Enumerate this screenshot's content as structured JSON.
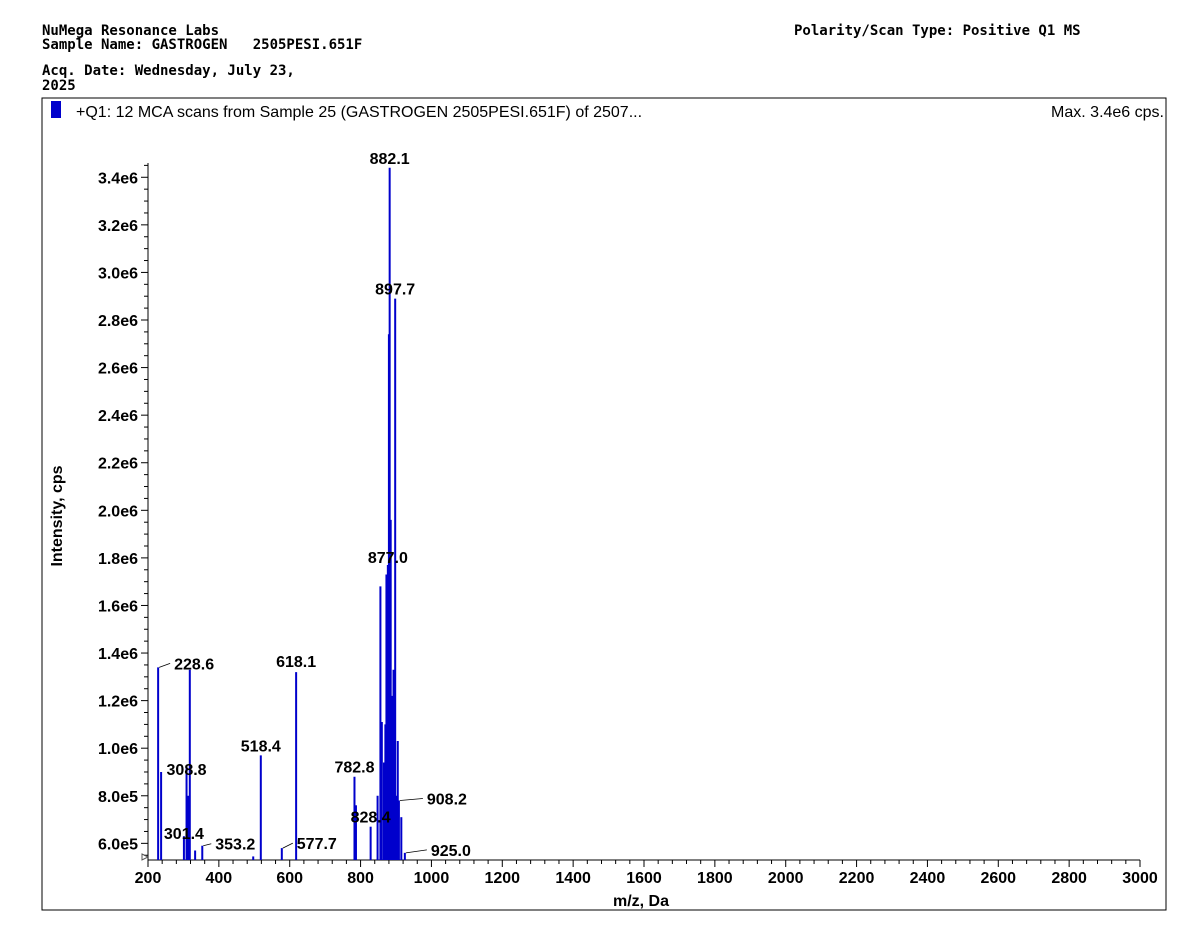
{
  "header": {
    "lab": "NuMega Resonance Labs",
    "sample_name": "Sample Name: GASTROGEN   2505PESI.651F",
    "acq_date_line1": "Acq. Date: Wednesday, July 23,",
    "acq_date_line2": "2025",
    "polarity": "Polarity/Scan Type: Positive Q1 MS"
  },
  "colors": {
    "series": "#0000cc",
    "axis": "#000000",
    "frame": "#000000"
  },
  "chart_data": {
    "type": "bar",
    "title": "+Q1: 12 MCA scans from Sample 25 (GASTROGEN   2505PESI.651F) of 2507...",
    "max_text": "Max. 3.4e6 cps.",
    "xlabel": "m/z, Da",
    "ylabel": "Intensity, cps",
    "xlim": [
      200,
      3000
    ],
    "ylim": [
      530000,
      3460000
    ],
    "x_ticks": [
      200,
      400,
      600,
      800,
      1000,
      1200,
      1400,
      1600,
      1800,
      2000,
      2200,
      2400,
      2600,
      2800,
      3000
    ],
    "y_ticks": [
      {
        "value": 600000,
        "label": "6.0e5"
      },
      {
        "value": 800000,
        "label": "8.0e5"
      },
      {
        "value": 1000000,
        "label": "1.0e6"
      },
      {
        "value": 1200000,
        "label": "1.2e6"
      },
      {
        "value": 1400000,
        "label": "1.4e6"
      },
      {
        "value": 1600000,
        "label": "1.6e6"
      },
      {
        "value": 1800000,
        "label": "1.8e6"
      },
      {
        "value": 2000000,
        "label": "2.0e6"
      },
      {
        "value": 2200000,
        "label": "2.2e6"
      },
      {
        "value": 2400000,
        "label": "2.4e6"
      },
      {
        "value": 2600000,
        "label": "2.6e6"
      },
      {
        "value": 2800000,
        "label": "2.8e6"
      },
      {
        "value": 3000000,
        "label": "3.0e6"
      },
      {
        "value": 3200000,
        "label": "3.2e6"
      },
      {
        "value": 3400000,
        "label": "3.4e6"
      }
    ],
    "peaks": [
      {
        "mz": 228.6,
        "intensity": 1340000
      },
      {
        "mz": 237,
        "intensity": 900000
      },
      {
        "mz": 301.4,
        "intensity": 630000
      },
      {
        "mz": 308.8,
        "intensity": 920000
      },
      {
        "mz": 314,
        "intensity": 800000
      },
      {
        "mz": 318,
        "intensity": 1330000
      },
      {
        "mz": 333,
        "intensity": 570000
      },
      {
        "mz": 353.2,
        "intensity": 590000
      },
      {
        "mz": 497,
        "intensity": 545000
      },
      {
        "mz": 518.4,
        "intensity": 970000
      },
      {
        "mz": 577.7,
        "intensity": 580000
      },
      {
        "mz": 618.1,
        "intensity": 1320000
      },
      {
        "mz": 782.8,
        "intensity": 880000
      },
      {
        "mz": 787,
        "intensity": 760000
      },
      {
        "mz": 828.4,
        "intensity": 670000
      },
      {
        "mz": 848,
        "intensity": 800000
      },
      {
        "mz": 856,
        "intensity": 1680000
      },
      {
        "mz": 860,
        "intensity": 1110000
      },
      {
        "mz": 866,
        "intensity": 940000
      },
      {
        "mz": 870,
        "intensity": 1100000
      },
      {
        "mz": 873,
        "intensity": 1730000
      },
      {
        "mz": 877.0,
        "intensity": 1770000
      },
      {
        "mz": 880,
        "intensity": 2740000
      },
      {
        "mz": 882.1,
        "intensity": 3440000
      },
      {
        "mz": 885,
        "intensity": 1960000
      },
      {
        "mz": 889,
        "intensity": 1220000
      },
      {
        "mz": 893,
        "intensity": 1330000
      },
      {
        "mz": 897.7,
        "intensity": 2890000
      },
      {
        "mz": 901,
        "intensity": 800000
      },
      {
        "mz": 905,
        "intensity": 1030000
      },
      {
        "mz": 908.2,
        "intensity": 780000
      },
      {
        "mz": 915,
        "intensity": 710000
      },
      {
        "mz": 925.0,
        "intensity": 560000
      }
    ],
    "annotations": [
      {
        "text": "882.1",
        "mz": 882.1,
        "intensity": 3440000
      },
      {
        "text": "897.7",
        "mz": 897.7,
        "intensity": 2890000
      },
      {
        "text": "877.0",
        "mz": 877.0,
        "intensity": 1770000
      },
      {
        "text": "228.6",
        "mz": 228.6,
        "intensity": 1340000
      },
      {
        "text": "618.1",
        "mz": 618.1,
        "intensity": 1320000
      },
      {
        "text": "518.4",
        "mz": 518.4,
        "intensity": 970000
      },
      {
        "text": "308.8",
        "mz": 308.8,
        "intensity": 920000
      },
      {
        "text": "782.8",
        "mz": 782.8,
        "intensity": 880000
      },
      {
        "text": "908.2",
        "mz": 908.2,
        "intensity": 780000
      },
      {
        "text": "828.4",
        "mz": 828.4,
        "intensity": 670000
      },
      {
        "text": "301.4",
        "mz": 301.4,
        "intensity": 630000
      },
      {
        "text": "353.2",
        "mz": 353.2,
        "intensity": 590000
      },
      {
        "text": "577.7",
        "mz": 577.7,
        "intensity": 580000
      },
      {
        "text": "925.0",
        "mz": 925.0,
        "intensity": 560000
      }
    ]
  }
}
